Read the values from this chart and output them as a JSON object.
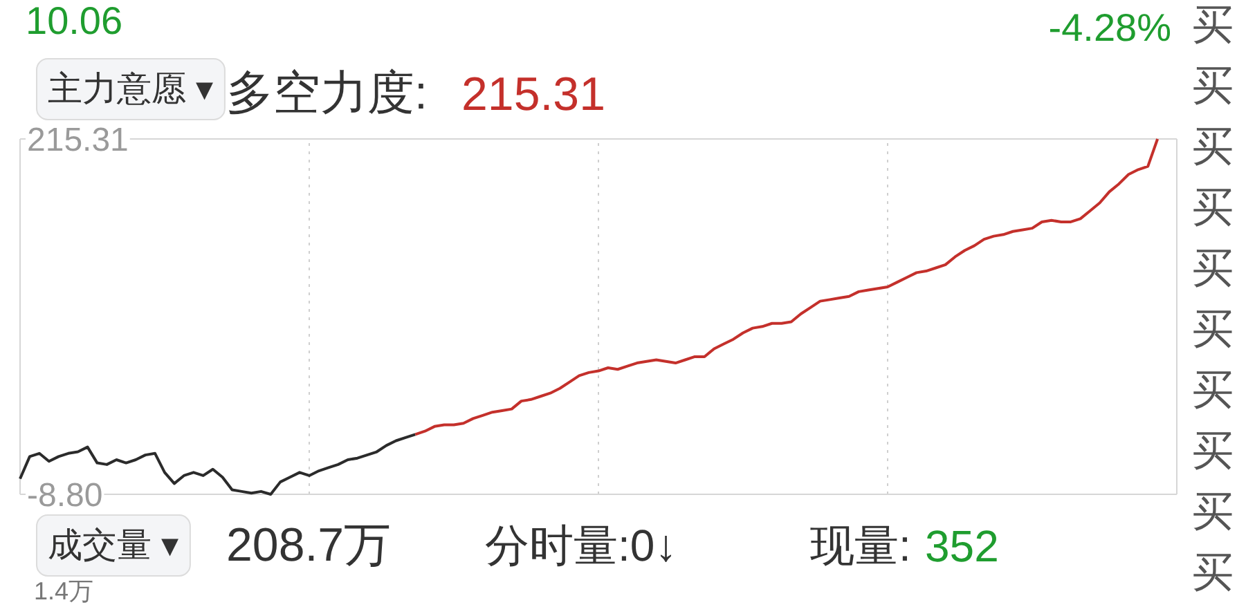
{
  "chart_data": {
    "type": "line",
    "title": "多空力度:",
    "categories": [
      null,
      null,
      null,
      null,
      null,
      null,
      null,
      null,
      null,
      null,
      null,
      null,
      null,
      null,
      null,
      null,
      null,
      null,
      null,
      null,
      null,
      null,
      null,
      null,
      null,
      null,
      null,
      null,
      null,
      null,
      null,
      null,
      null,
      null,
      null,
      null,
      null,
      null,
      null,
      null,
      null,
      null,
      null,
      null,
      null,
      null,
      null,
      null,
      null,
      null,
      null,
      null,
      null,
      null,
      null,
      null,
      null,
      null,
      null,
      null,
      null,
      null,
      null,
      null,
      null,
      null,
      null,
      null,
      null,
      null,
      null,
      null,
      null,
      null,
      null,
      null,
      null,
      null,
      null,
      null,
      null,
      null,
      null,
      null,
      null,
      null,
      null,
      null,
      null,
      null,
      null,
      null,
      null,
      null,
      null,
      null,
      null,
      null,
      null,
      null,
      null,
      null,
      null,
      null,
      null,
      null,
      null,
      null,
      null,
      null,
      null,
      null,
      null,
      null,
      null,
      null,
      null,
      null,
      null,
      null,
      null
    ],
    "series": [
      {
        "color": "#2b2b2b",
        "values": [
          1,
          15,
          17,
          12,
          15,
          17,
          18,
          21,
          11,
          10,
          13,
          11,
          13,
          16,
          17,
          5,
          -2,
          3,
          5,
          3,
          7,
          2,
          -6,
          -7,
          -8,
          -7,
          -8.8,
          -1,
          2,
          5,
          3,
          6,
          8,
          10,
          13,
          14,
          16,
          18,
          22,
          25,
          27,
          29,
          null,
          null,
          null,
          null,
          null,
          null,
          null,
          null,
          null,
          null,
          null,
          null,
          null,
          null,
          null,
          null,
          null,
          null,
          null,
          null,
          null,
          null,
          null,
          null,
          null,
          null,
          null,
          null,
          null,
          null,
          null,
          null,
          null,
          null,
          null,
          null,
          null,
          null,
          null,
          null,
          null,
          null,
          null,
          null,
          null,
          null,
          null,
          null,
          null,
          null,
          null,
          null,
          null,
          null,
          null,
          null,
          null,
          null,
          null,
          null,
          null,
          null,
          null,
          null,
          null,
          null,
          null,
          null,
          null,
          null,
          null,
          null,
          null,
          null,
          null,
          null,
          null,
          null,
          null
        ]
      },
      {
        "color": "#c4302b",
        "values": [
          null,
          null,
          null,
          null,
          null,
          null,
          null,
          null,
          null,
          null,
          null,
          null,
          null,
          null,
          null,
          null,
          null,
          null,
          null,
          null,
          null,
          null,
          null,
          null,
          null,
          null,
          null,
          null,
          null,
          null,
          null,
          null,
          null,
          null,
          null,
          null,
          null,
          null,
          null,
          null,
          null,
          29,
          31,
          34,
          35,
          35,
          36,
          39,
          41,
          43,
          44,
          45,
          50,
          51,
          53,
          55,
          58,
          62,
          66,
          68,
          69,
          71,
          70,
          72,
          74,
          75,
          76,
          75,
          74,
          76,
          78,
          78,
          83,
          86,
          89,
          93,
          96,
          97,
          99,
          99,
          100,
          105,
          109,
          113,
          114,
          115,
          116,
          119,
          120,
          121,
          122,
          125,
          128,
          131,
          132,
          134,
          136,
          141,
          145,
          148,
          152,
          154,
          155,
          157,
          158,
          159,
          163,
          164,
          163,
          163,
          165,
          170,
          175,
          182,
          187,
          193,
          196,
          198,
          215.31,
          null,
          null
        ]
      }
    ],
    "ylim": [
      -8.8,
      215.31
    ],
    "yticks": [
      215.31,
      {
        "value": -8.8,
        "label": "-8.80"
      }
    ],
    "grid": "x",
    "annotations": [
      "10.06",
      "-4.28%",
      "主力意愿 ▾",
      "215.31",
      "成交量 ▾",
      "208.7万",
      "分时量:0↓",
      "现量:",
      "352",
      "1.4万",
      "买",
      "买",
      "买",
      "买",
      "买",
      "买",
      "买",
      "买",
      "买",
      "买"
    ]
  }
}
